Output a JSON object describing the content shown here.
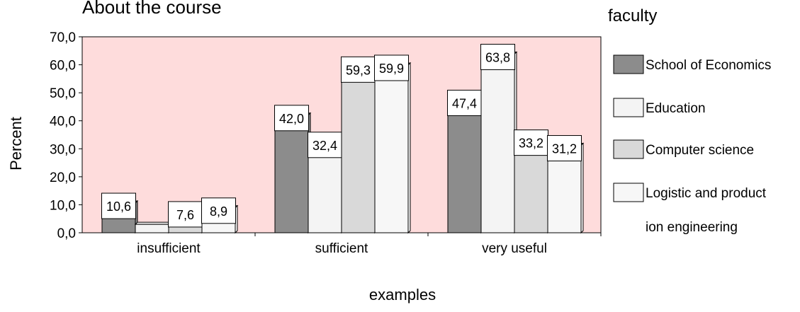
{
  "chart_data": {
    "type": "bar",
    "title": "About the course",
    "xlabel": "examples",
    "ylabel": "Percent",
    "legend_title": "faculty",
    "legend_position": "right",
    "ylim": [
      0,
      70
    ],
    "yticks": [
      "0,0",
      "10,0",
      "20,0",
      "30,0",
      "40,0",
      "50,0",
      "60,0",
      "70,0"
    ],
    "categories": [
      "insufficient",
      "sufficient",
      "very useful"
    ],
    "series": [
      {
        "name": "School of Economics",
        "color": "#8c8c8c",
        "values": [
          10.6,
          42.0,
          47.4
        ],
        "labels": [
          "10,6",
          "42,0",
          "47,4"
        ]
      },
      {
        "name": "Education",
        "color": "#f4f4f4",
        "values": [
          3.0,
          32.4,
          63.8
        ],
        "labels": [
          "",
          "32,4",
          "63,8"
        ]
      },
      {
        "name": "Computer science",
        "color": "#d9d9d9",
        "values": [
          7.6,
          59.3,
          33.2
        ],
        "labels": [
          "7,6",
          "59,3",
          "33,2"
        ]
      },
      {
        "name": "Logistic and product ion engineering",
        "legend_lines": [
          "Logistic and product",
          "ion engineering"
        ],
        "color": "#f7f7f7",
        "values": [
          8.9,
          59.9,
          31.2
        ],
        "labels": [
          "8,9",
          "59,9",
          "31,2"
        ]
      }
    ],
    "plot_background": "#fedcdc",
    "grid": false
  }
}
